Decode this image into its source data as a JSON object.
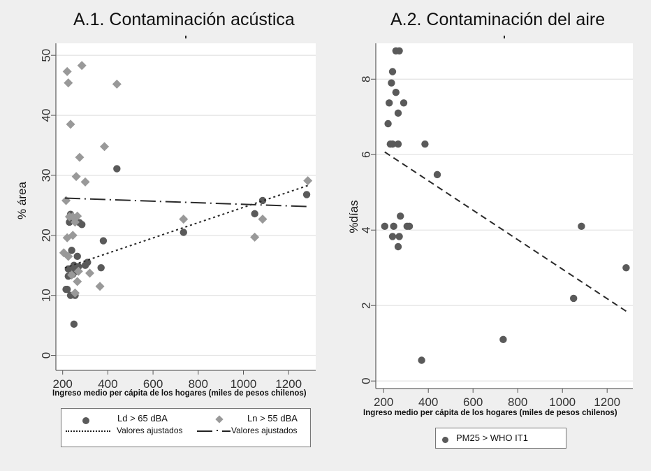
{
  "chart_data": [
    {
      "id": "acustica",
      "type": "scatter",
      "title": "A.1. Contaminación acústica",
      "xlabel": "Ingreso medio per cápita de los hogares (miles de pesos chilenos)",
      "ylabel": "% área",
      "xlim": [
        170,
        1320
      ],
      "ylim": [
        -2.5,
        52
      ],
      "xticks": [
        200,
        400,
        600,
        800,
        1000,
        1200
      ],
      "yticks": [
        0,
        10,
        20,
        30,
        40,
        50
      ],
      "grid": true,
      "legend_position": "bottom",
      "series": [
        {
          "name": "Ld > 65 dBA",
          "marker": "circle",
          "color": "#5a5a5a",
          "points": [
            [
              220,
              11
            ],
            [
              215,
              11
            ],
            [
              230,
              22.2
            ],
            [
              235,
              23.5
            ],
            [
              225,
              14.4
            ],
            [
              245,
              13.5
            ],
            [
              235,
              10
            ],
            [
              250,
              15
            ],
            [
              265,
              16.5
            ],
            [
              255,
              10
            ],
            [
              250,
              5.2
            ],
            [
              275,
              22.1
            ],
            [
              285,
              21.8
            ],
            [
              260,
              14
            ],
            [
              245,
              14.5
            ],
            [
              270,
              14.8
            ],
            [
              240,
              17.5
            ],
            [
              300,
              15
            ],
            [
              310,
              15.5
            ],
            [
              370,
              14.6
            ],
            [
              380,
              19.1
            ],
            [
              440,
              31.1
            ],
            [
              735,
              20.5
            ],
            [
              1050,
              23.6
            ],
            [
              1085,
              25.8
            ],
            [
              1280,
              26.8
            ],
            [
              225,
              13.2
            ],
            [
              255,
              14.2
            ]
          ]
        },
        {
          "name": "Ln > 55 dBA",
          "marker": "diamond",
          "color": "#999999",
          "points": [
            [
              220,
              47.3
            ],
            [
              225,
              45.4
            ],
            [
              285,
              48.3
            ],
            [
              440,
              45.2
            ],
            [
              235,
              38.5
            ],
            [
              385,
              34.8
            ],
            [
              275,
              33
            ],
            [
              300,
              28.9
            ],
            [
              260,
              29.8
            ],
            [
              215,
              25.8
            ],
            [
              230,
              23.1
            ],
            [
              265,
              23.2
            ],
            [
              245,
              23.1
            ],
            [
              255,
              22.2
            ],
            [
              220,
              19.6
            ],
            [
              245,
              20
            ],
            [
              205,
              17.1
            ],
            [
              225,
              16.5
            ],
            [
              240,
              13.4
            ],
            [
              270,
              14
            ],
            [
              265,
              12.3
            ],
            [
              320,
              13.7
            ],
            [
              255,
              10.4
            ],
            [
              365,
              11.5
            ],
            [
              735,
              22.7
            ],
            [
              1050,
              19.7
            ],
            [
              1085,
              22.7
            ],
            [
              1285,
              29.1
            ]
          ]
        }
      ],
      "fits": [
        {
          "name": "Valores ajustados",
          "style": "dotted",
          "for": "Ld > 65 dBA",
          "from": [
            210,
            14.6
          ],
          "to": [
            1285,
            28.3
          ]
        },
        {
          "name": "Valores ajustados",
          "style": "dash-dot",
          "for": "Ln > 55 dBA",
          "from": [
            210,
            26.2
          ],
          "to": [
            1285,
            24.8
          ]
        }
      ]
    },
    {
      "id": "aire",
      "type": "scatter",
      "title": "A.2. Contaminación del aire",
      "xlabel": "Ingreso medio per cápita de los hogares (miles de pesos chilenos)",
      "ylabel": "%días",
      "xlim": [
        165,
        1315
      ],
      "ylim": [
        -0.2,
        8.95
      ],
      "xticks": [
        200,
        400,
        600,
        800,
        1000,
        1200
      ],
      "yticks": [
        0,
        2,
        4,
        6,
        8
      ],
      "grid": true,
      "legend_position": "bottom",
      "series": [
        {
          "name": "PM25 > WHO IT1",
          "marker": "circle",
          "color": "#5a5a5a",
          "points": [
            [
              255,
              8.75
            ],
            [
              270,
              8.75
            ],
            [
              240,
              8.2
            ],
            [
              235,
              7.9
            ],
            [
              255,
              7.65
            ],
            [
              225,
              7.37
            ],
            [
              290,
              7.37
            ],
            [
              265,
              7.1
            ],
            [
              220,
              6.82
            ],
            [
              230,
              6.28
            ],
            [
              240,
              6.28
            ],
            [
              265,
              6.28
            ],
            [
              385,
              6.28
            ],
            [
              440,
              5.47
            ],
            [
              275,
              4.37
            ],
            [
              205,
              4.1
            ],
            [
              245,
              4.1
            ],
            [
              305,
              4.1
            ],
            [
              315,
              4.1
            ],
            [
              240,
              3.83
            ],
            [
              270,
              3.83
            ],
            [
              265,
              3.56
            ],
            [
              370,
              0.55
            ],
            [
              735,
              1.1
            ],
            [
              1050,
              2.19
            ],
            [
              1085,
              4.1
            ],
            [
              1285,
              3.0
            ]
          ]
        }
      ],
      "fits": [
        {
          "name": "Valores ajustados",
          "style": "dashed",
          "for": "PM25 > WHO IT1",
          "from": [
            205,
            6.07
          ],
          "to": [
            1285,
            1.85
          ]
        }
      ]
    }
  ],
  "legends": {
    "left": {
      "row1": {
        "label1": "Ld > 65 dBA",
        "label2": "Ln > 55 dBA"
      },
      "row2": {
        "label1": "Valores ajustados",
        "label2": "Valores ajustados"
      }
    },
    "right": {
      "label1": "PM25 > WHO IT1"
    }
  }
}
